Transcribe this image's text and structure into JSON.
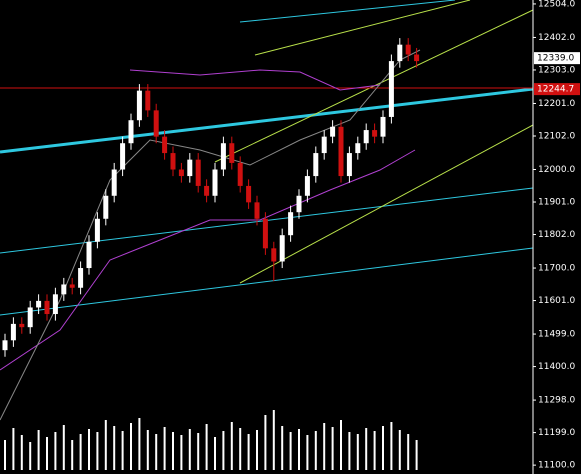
{
  "chart_data": {
    "type": "candlestick",
    "ylim": [
      11073,
      12516
    ],
    "yticks": [
      {
        "value": 12504,
        "label": "12504.0"
      },
      {
        "value": 12402,
        "label": "12402.0"
      },
      {
        "value": 12303,
        "label": "12303.0"
      },
      {
        "value": 12201,
        "label": "12201.0"
      },
      {
        "value": 12102,
        "label": "12102.0"
      },
      {
        "value": 12000,
        "label": "12000.0"
      },
      {
        "value": 11901,
        "label": "11901.0"
      },
      {
        "value": 11802,
        "label": "11802.0"
      },
      {
        "value": 11700,
        "label": "11700.0"
      },
      {
        "value": 11601,
        "label": "11601.0"
      },
      {
        "value": 11499,
        "label": "11499.0"
      },
      {
        "value": 11400,
        "label": "11400.0"
      },
      {
        "value": 11298,
        "label": "11298.0"
      },
      {
        "value": 11199,
        "label": "11199.0"
      },
      {
        "value": 11100,
        "label": "11100.0"
      }
    ],
    "up_color": "#ffffff",
    "down_color": "#d01010",
    "open": [
      11450,
      11480,
      11530,
      11520,
      11580,
      11600,
      11560,
      11620,
      11650,
      11640,
      11700,
      11780,
      11850,
      11920,
      12000,
      12080,
      12150,
      12240,
      12180,
      12100,
      12050,
      12000,
      11980,
      12030,
      11950,
      11920,
      12000,
      12080,
      12020,
      11950,
      11900,
      11850,
      11760,
      11720,
      11800,
      11870,
      11920,
      11980,
      12050,
      12100,
      12130,
      11980,
      12050,
      12080,
      12120,
      12100,
      12160,
      12330,
      12380,
      12350
    ],
    "high": [
      11500,
      11550,
      11550,
      11600,
      11620,
      11620,
      11640,
      11670,
      11670,
      11720,
      11800,
      11870,
      11940,
      12020,
      12100,
      12170,
      12260,
      12260,
      12200,
      12120,
      12070,
      12020,
      12050,
      12050,
      11970,
      12020,
      12100,
      12100,
      12040,
      11970,
      11920,
      11870,
      11780,
      11820,
      11890,
      11940,
      12000,
      12070,
      12120,
      12150,
      12150,
      12070,
      12100,
      12140,
      12140,
      12180,
      12350,
      12400,
      12400,
      12370
    ],
    "low": [
      11430,
      11460,
      11500,
      11500,
      11560,
      11540,
      11540,
      11600,
      11620,
      11620,
      11680,
      11760,
      11830,
      11900,
      11980,
      12060,
      12130,
      12160,
      12080,
      12030,
      11980,
      11960,
      11960,
      11930,
      11900,
      11900,
      11980,
      12000,
      11930,
      11880,
      11830,
      11740,
      11660,
      11700,
      11780,
      11850,
      11900,
      11960,
      12030,
      12080,
      11960,
      11960,
      12030,
      12060,
      12080,
      12080,
      12140,
      12310,
      12330,
      12310
    ],
    "close": [
      11480,
      11530,
      11520,
      11580,
      11600,
      11560,
      11620,
      11650,
      11640,
      11700,
      11780,
      11850,
      11920,
      12000,
      12080,
      12150,
      12240,
      12180,
      12100,
      12050,
      12000,
      11980,
      12030,
      11950,
      11920,
      12000,
      12080,
      12020,
      11950,
      11900,
      11850,
      11760,
      11720,
      11800,
      11870,
      11920,
      11980,
      12050,
      12100,
      12130,
      11980,
      12050,
      12080,
      12120,
      12100,
      12160,
      12330,
      12380,
      12350,
      12330
    ],
    "volume": [
      30,
      42,
      35,
      28,
      40,
      33,
      38,
      45,
      30,
      36,
      41,
      38,
      50,
      44,
      39,
      47,
      52,
      40,
      36,
      43,
      38,
      35,
      41,
      37,
      46,
      33,
      39,
      48,
      42,
      36,
      40,
      55,
      60,
      44,
      38,
      41,
      35,
      39,
      47,
      43,
      50,
      38,
      36,
      42,
      39,
      44,
      48,
      40,
      36,
      30
    ],
    "markers": [
      {
        "value": 12339,
        "label": "12339.0",
        "color": "#ffffff"
      },
      {
        "value": 12244.7,
        "label": "12244.7",
        "color": "#d01010"
      }
    ]
  }
}
